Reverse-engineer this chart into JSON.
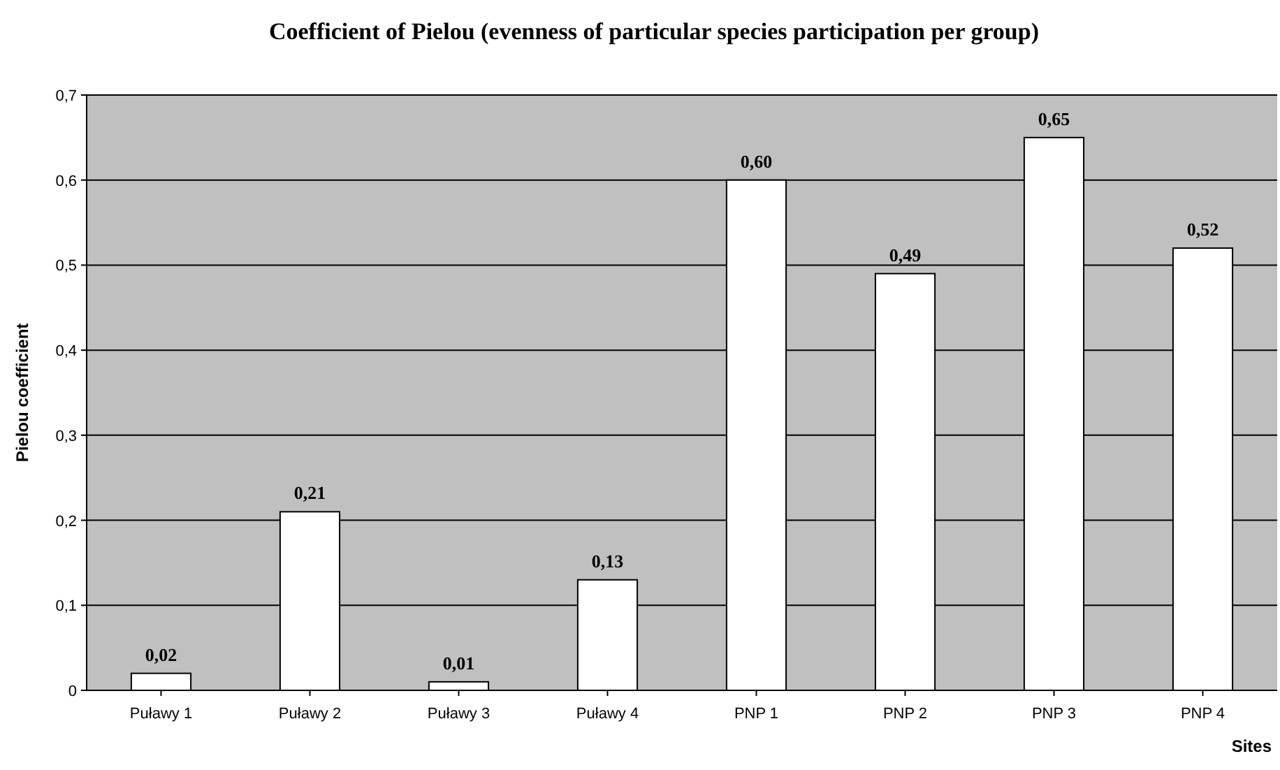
{
  "chart_data": {
    "type": "bar",
    "title": "Coefficient of Pielou (evenness of particular species participation per group)",
    "xlabel": "Sites",
    "ylabel": "Pielou coefficient",
    "categories": [
      "Puławy 1",
      "Puławy 2",
      "Puławy 3",
      "Puławy 4",
      "PNP 1",
      "PNP 2",
      "PNP 3",
      "PNP 4"
    ],
    "values": [
      0.02,
      0.21,
      0.01,
      0.13,
      0.6,
      0.49,
      0.65,
      0.52
    ],
    "value_labels": [
      "0,02",
      "0,21",
      "0,01",
      "0,13",
      "0,60",
      "0,49",
      "0,65",
      "0,52"
    ],
    "color": "#ffffff",
    "ylim": [
      0,
      0.7
    ],
    "yticks": [
      0,
      {
        "value": 0.1,
        "label": "0,1"
      },
      {
        "value": 0.2,
        "label": "0,2"
      },
      {
        "value": 0.3,
        "label": "0,3"
      },
      {
        "value": 0.4,
        "label": "0,4"
      },
      {
        "value": 0.5,
        "label": "0,5"
      },
      {
        "value": 0.6,
        "label": "0,6"
      },
      {
        "value": 0.7,
        "label": "0,7"
      }
    ],
    "grid": "y"
  }
}
